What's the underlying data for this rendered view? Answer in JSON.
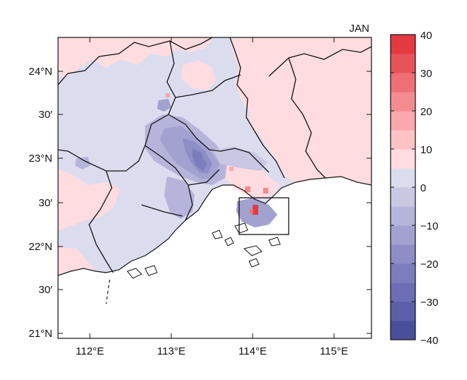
{
  "map": {
    "month": "JAN",
    "lon_ticks": [
      "112°E",
      "113°E",
      "114°E",
      "115°E"
    ],
    "lat_ticks": [
      "24°N",
      "30′",
      "23°N",
      "30′",
      "22°N",
      "30′",
      "21°N"
    ],
    "lon_range": [
      111.7,
      115.5
    ],
    "lat_range": [
      20.95,
      24.75
    ],
    "land_base_color": "#dcdcef",
    "sea_color": "#ffffff",
    "boundary_color": "#111111"
  },
  "colorbar": {
    "ticks": [
      "40",
      "30",
      "20",
      "10",
      "0",
      "−10",
      "−20",
      "−30",
      "−40"
    ],
    "range": [
      -40,
      40
    ],
    "step": 5,
    "colors": [
      "#4a4f9c",
      "#5b5ea8",
      "#6c6db4",
      "#7c7dbd",
      "#8e8ec7",
      "#a2a2d1",
      "#b5b4da",
      "#c9c8e3",
      "#dcdcef",
      "#ffdcdf",
      "#ffc3c6",
      "#fba7ab",
      "#f48b90",
      "#ee6f75",
      "#e8535a",
      "#e33a40"
    ]
  }
}
